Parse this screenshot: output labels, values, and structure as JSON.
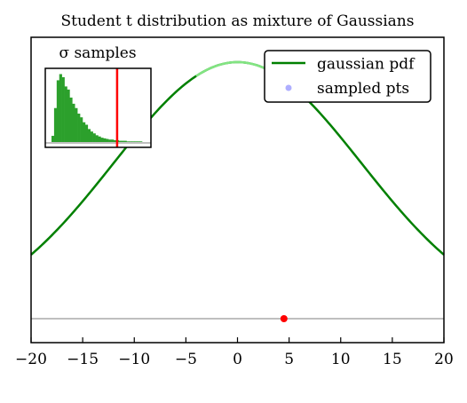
{
  "title": "Student t distribution as mixture of Gaussians",
  "chart_data": [
    {
      "type": "line",
      "title": "Student t distribution as mixture of Gaussians",
      "xlim": [
        -20,
        20
      ],
      "xticks": [
        -20,
        -15,
        -10,
        -5,
        0,
        5,
        10,
        15,
        20
      ],
      "xtick_labels": [
        "−20",
        "−15",
        "−10",
        "−5",
        "0",
        "5",
        "10",
        "15",
        "20"
      ],
      "yticks_visible": false,
      "grid": false,
      "legend_location": "top-right",
      "series": [
        {
          "name": "gaussian pdf",
          "color": "#008000",
          "curve": "gaussian",
          "mean": 0,
          "sigma": 12
        },
        {
          "name": "sampled pts",
          "color": "#8c8cff",
          "marker": "circle",
          "points": [
            [
              5,
              0.917
            ]
          ]
        }
      ],
      "highlight_segment": {
        "x_range": [
          -4,
          5
        ],
        "color": "#90ee90"
      },
      "baseline": {
        "color": "#bfbfbf"
      },
      "baseline_marker": {
        "x": 4.5,
        "color": "#ff0000"
      }
    },
    {
      "type": "bar",
      "title": "σ samples",
      "color": "#2ca02c",
      "values": [
        10,
        55,
        100,
        110,
        105,
        90,
        85,
        72,
        62,
        55,
        46,
        40,
        32,
        28,
        21,
        17,
        14,
        11,
        9,
        7,
        6,
        5,
        4,
        4,
        3,
        3,
        2,
        2,
        2,
        1,
        1,
        1,
        1,
        1,
        1
      ],
      "ylim": [
        0,
        115
      ],
      "vline": {
        "position_fraction": 0.68,
        "color": "#ff0000"
      },
      "baseline": {
        "color": "#bfbfbf"
      },
      "ticks_visible": false
    }
  ]
}
